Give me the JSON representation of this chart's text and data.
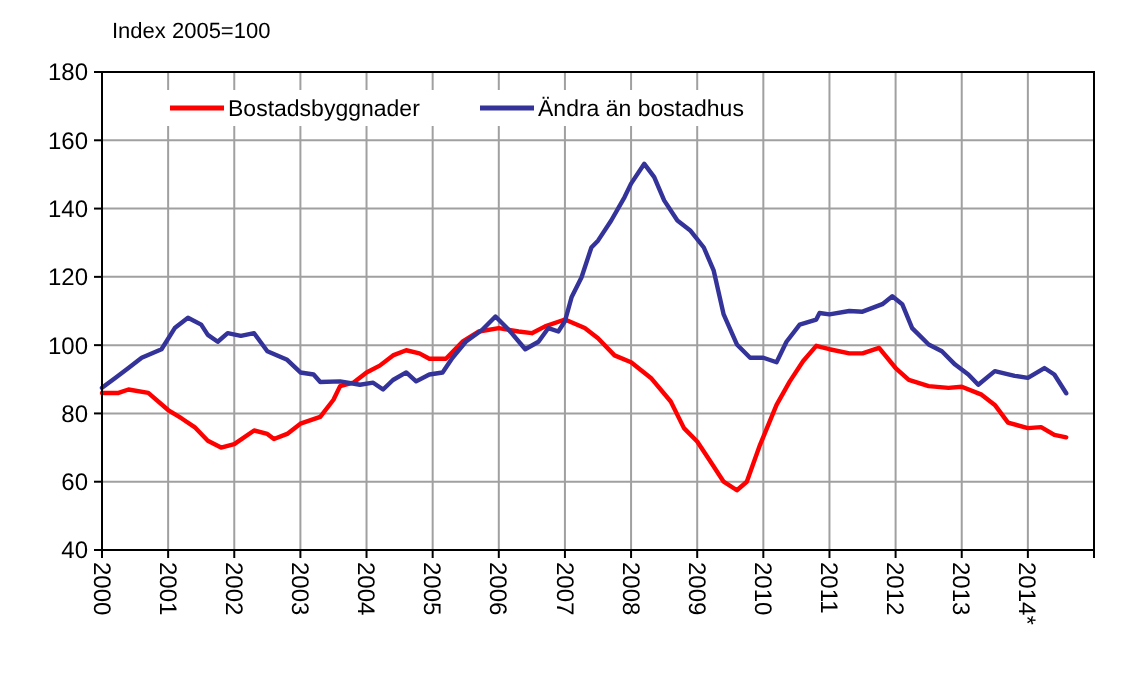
{
  "chart_data": {
    "type": "line",
    "title": "Index  2005=100",
    "xlim": [
      2000,
      2015
    ],
    "ylim": [
      40,
      180
    ],
    "xticks": [
      2000,
      2001,
      2002,
      2003,
      2004,
      2005,
      2006,
      2007,
      2008,
      2009,
      2010,
      2011,
      2012,
      2013,
      {
        "value": 2014,
        "label": "2014*"
      },
      {
        "value": 2015,
        "label": null
      }
    ],
    "yticks": [
      40,
      60,
      80,
      100,
      120,
      140,
      160,
      180
    ],
    "grid": true,
    "legend": "top",
    "marker": "none",
    "line_style": "solid",
    "series": [
      {
        "name": "Bostadsbyggnader",
        "color": "#ff0000",
        "x": [
          2000,
          2000.25,
          2000.4,
          2000.7,
          2001,
          2001.2,
          2001.4,
          2001.6,
          2001.8,
          2002,
          2002.3,
          2002.5,
          2002.6,
          2002.8,
          2003,
          2003.3,
          2003.5,
          2003.6,
          2003.8,
          2004,
          2004.2,
          2004.4,
          2004.6,
          2004.8,
          2004.95,
          2005.2,
          2005.45,
          2005.7,
          2006,
          2006.3,
          2006.5,
          2006.7,
          2007,
          2007.3,
          2007.5,
          2007.75,
          2008,
          2008.3,
          2008.6,
          2008.8,
          2009,
          2009.2,
          2009.4,
          2009.6,
          2009.75,
          2009.95,
          2010.2,
          2010.4,
          2010.6,
          2010.8,
          2011,
          2011.3,
          2011.5,
          2011.75,
          2012,
          2012.2,
          2012.5,
          2012.8,
          2013,
          2013.3,
          2013.5,
          2013.7,
          2014,
          2014.2,
          2014.4,
          2014.58
        ],
        "values": [
          86,
          86,
          87,
          86,
          81,
          78.6,
          76,
          72,
          70,
          71,
          75,
          74,
          72.5,
          74,
          77,
          79,
          84,
          88,
          89,
          92,
          94,
          97,
          98.5,
          97.6,
          96,
          96,
          101,
          104,
          105,
          104,
          103.5,
          105.5,
          107.5,
          105,
          102,
          97,
          95,
          90.4,
          83.5,
          75.7,
          71.8,
          65.9,
          60,
          57.5,
          60,
          70.8,
          82.5,
          89.4,
          95.3,
          99.8,
          98.8,
          97.6,
          97.6,
          99.2,
          93.3,
          89.8,
          88,
          87.5,
          87.8,
          85.5,
          82.5,
          77.3,
          75.7,
          76,
          73.7,
          73
        ]
      },
      {
        "name": "Ändra än bostadhus",
        "color": "#333399",
        "x": [
          2000,
          2000.2,
          2000.4,
          2000.6,
          2000.9,
          2001.1,
          2001.3,
          2001.5,
          2001.6,
          2001.75,
          2001.9,
          2002.1,
          2002.3,
          2002.5,
          2002.8,
          2003,
          2003.2,
          2003.3,
          2003.6,
          2003.9,
          2004.1,
          2004.25,
          2004.4,
          2004.6,
          2004.75,
          2004.95,
          2005.15,
          2005.3,
          2005.5,
          2005.75,
          2005.95,
          2006.15,
          2006.4,
          2006.6,
          2006.75,
          2006.9,
          2007,
          2007.1,
          2007.25,
          2007.4,
          2007.5,
          2007.7,
          2007.9,
          2008,
          2008.2,
          2008.35,
          2008.5,
          2008.7,
          2008.9,
          2009.1,
          2009.25,
          2009.4,
          2009.6,
          2009.8,
          2010,
          2010.2,
          2010.35,
          2010.55,
          2010.8,
          2010.85,
          2011,
          2011.3,
          2011.5,
          2011.8,
          2011.95,
          2012.1,
          2012.25,
          2012.5,
          2012.7,
          2012.9,
          2013.1,
          2013.25,
          2013.5,
          2013.8,
          2014,
          2014.25,
          2014.4,
          2014.58
        ],
        "values": [
          87.5,
          90.4,
          93.3,
          96.3,
          98.8,
          105,
          108,
          106,
          103,
          101,
          103.5,
          102.7,
          103.5,
          98.2,
          95.7,
          92,
          91.4,
          89.2,
          89.4,
          88.4,
          89,
          87,
          89.8,
          92,
          89.4,
          91.4,
          92,
          96.3,
          101,
          104.5,
          108.4,
          104.5,
          98.8,
          101,
          105,
          104,
          107,
          114,
          119.8,
          128.6,
          130.6,
          136.5,
          143.3,
          147.3,
          153.1,
          149.2,
          142.4,
          136.5,
          133.5,
          128.6,
          121.8,
          109,
          100.2,
          96.3,
          96.3,
          95,
          101,
          106,
          107.5,
          109.4,
          109,
          110,
          109.8,
          112,
          114.3,
          112,
          105,
          100.2,
          98.2,
          94.3,
          91.4,
          88.4,
          92.4,
          91,
          90.4,
          93.3,
          91.4,
          85.9
        ]
      }
    ]
  }
}
